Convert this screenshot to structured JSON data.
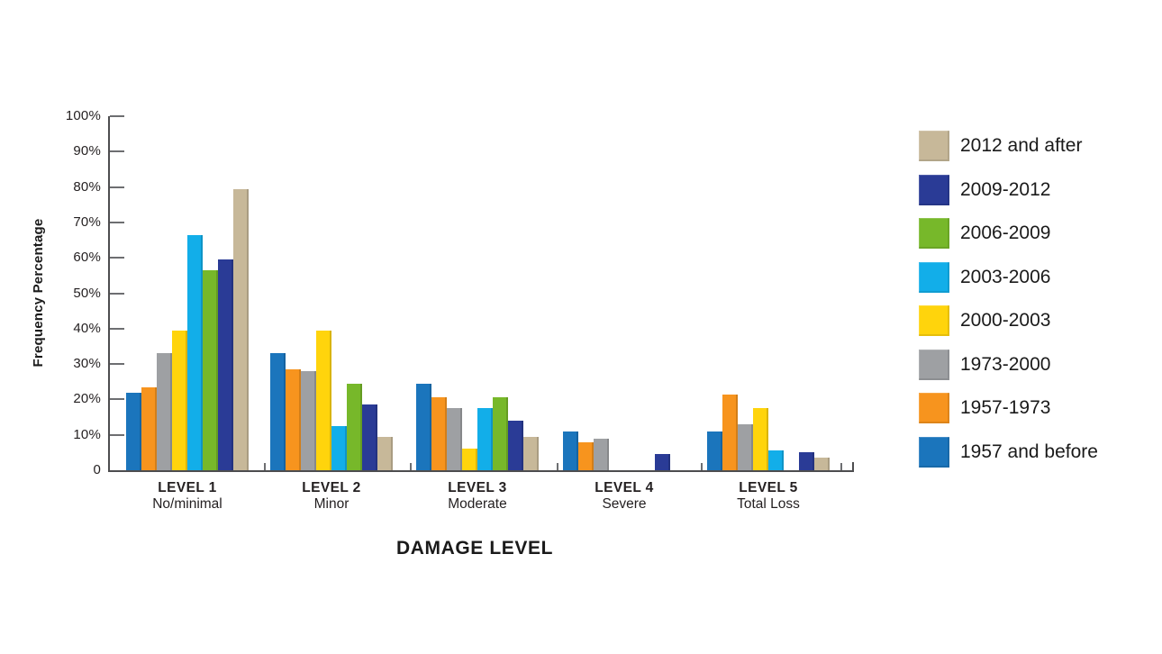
{
  "chart_data": {
    "type": "bar",
    "title": "",
    "xlabel": "DAMAGE LEVEL",
    "ylabel": "Frequency Percentage",
    "ylim": [
      0,
      100
    ],
    "grid": false,
    "y_ticks_percent": [
      0,
      10,
      20,
      30,
      40,
      50,
      60,
      70,
      80,
      90,
      100
    ],
    "y_tick_labels": [
      "0",
      "10%",
      "20%",
      "30%",
      "40%",
      "50%",
      "60%",
      "70%",
      "80%",
      "90%",
      "100%"
    ],
    "categories": [
      {
        "level": "LEVEL 1",
        "desc": "No/minimal"
      },
      {
        "level": "LEVEL 2",
        "desc": "Minor"
      },
      {
        "level": "LEVEL 3",
        "desc": "Moderate"
      },
      {
        "level": "LEVEL 4",
        "desc": "Severe"
      },
      {
        "level": "LEVEL 5",
        "desc": "Total Loss"
      }
    ],
    "series": [
      {
        "name": "1957 and before",
        "color": "#1B75BC",
        "values": [
          22,
          33,
          24.5,
          11,
          11
        ]
      },
      {
        "name": "1957-1973",
        "color": "#F7941E",
        "values": [
          23.5,
          28.5,
          20.5,
          8,
          21.5
        ]
      },
      {
        "name": "1973-2000",
        "color": "#9EA0A3",
        "values": [
          33,
          28,
          17.5,
          9,
          13
        ]
      },
      {
        "name": "2000-2003",
        "color": "#FFD40C",
        "values": [
          39.5,
          39.5,
          6,
          0,
          17.5
        ]
      },
      {
        "name": "2003-2006",
        "color": "#12AEE9",
        "values": [
          66.5,
          12.5,
          17.5,
          0,
          5.5
        ]
      },
      {
        "name": "2006-2009",
        "color": "#77B82A",
        "values": [
          56.5,
          24.5,
          20.5,
          0,
          0
        ]
      },
      {
        "name": "2009-2012",
        "color": "#2A3B96",
        "values": [
          59.5,
          18.5,
          14,
          4.5,
          5
        ]
      },
      {
        "name": "2012 and after",
        "color": "#C7B899",
        "values": [
          79.5,
          9.5,
          9.5,
          0,
          3.5
        ]
      }
    ],
    "legend": {
      "position": "right",
      "items": [
        "2012 and after",
        "2009-2012",
        "2006-2009",
        "2003-2006",
        "2000-2003",
        "1973-2000",
        "1957-1973",
        "1957 and before"
      ]
    },
    "colors": {
      "axis": "#4D4D4F",
      "tick": "#6D6E71",
      "text": "#231F20",
      "background": "#FFFFFF"
    }
  }
}
